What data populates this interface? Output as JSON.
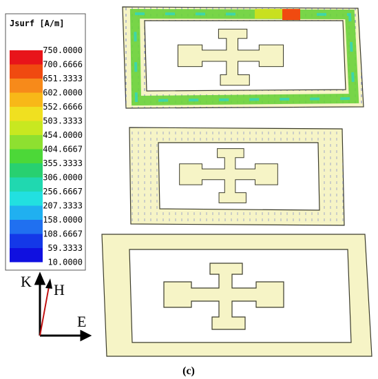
{
  "legend": {
    "title": "Jsurf [A/m]",
    "labels": [
      "750.0000",
      "700.6666",
      "651.3333",
      "602.0000",
      "552.6666",
      "503.3333",
      "454.0000",
      "404.6667",
      "355.3333",
      "306.0000",
      "256.6667",
      "207.3333",
      "158.0000",
      "108.6667",
      "59.3333",
      "10.0000"
    ]
  },
  "axes": {
    "k": "K",
    "h": "H",
    "e": "E"
  },
  "caption": "(c)"
}
